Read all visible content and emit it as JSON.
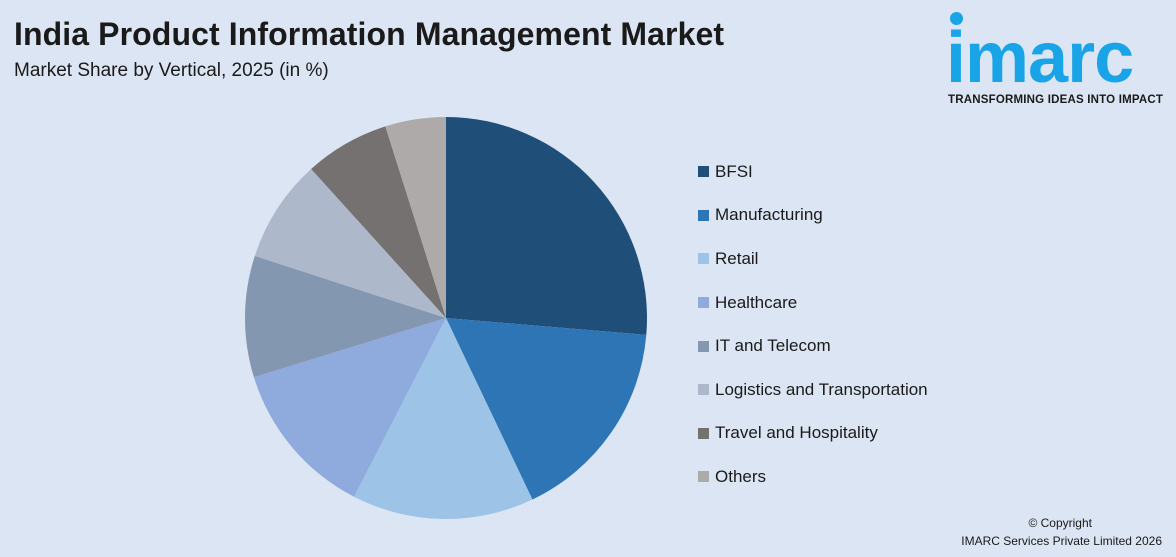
{
  "header": {
    "title": "India Product Information Management Market",
    "subtitle": "Market Share by Vertical, 2025 (in %)"
  },
  "logo": {
    "word": "imarc",
    "tagline": "TRANSFORMING IDEAS INTO IMPACT",
    "color": "#1aa4e8"
  },
  "chart_data": {
    "type": "pie",
    "title": "India Product Information Management Market",
    "subtitle": "Market Share by Vertical, 2025 (in %)",
    "start_angle_deg": 0,
    "direction": "clockwise",
    "legend_position": "right",
    "slices": [
      {
        "label": "BFSI",
        "value": 27,
        "color": "#1f4e79"
      },
      {
        "label": "Manufacturing",
        "value": 17,
        "color": "#2e75b6"
      },
      {
        "label": "Retail",
        "value": 15,
        "color": "#9dc3e6"
      },
      {
        "label": "Healthcare",
        "value": 13,
        "color": "#8faadc"
      },
      {
        "label": "IT and Telecom",
        "value": 10,
        "color": "#8497b0"
      },
      {
        "label": "Logistics and Transportation",
        "value": 8.5,
        "color": "#adb9ca"
      },
      {
        "label": "Travel and Hospitality",
        "value": 7,
        "color": "#767171"
      },
      {
        "label": "Others",
        "value": 5,
        "color": "#aeaaaa"
      }
    ]
  },
  "footer": {
    "copyright": "© Copyright",
    "company": "IMARC Services Private Limited 2026"
  }
}
